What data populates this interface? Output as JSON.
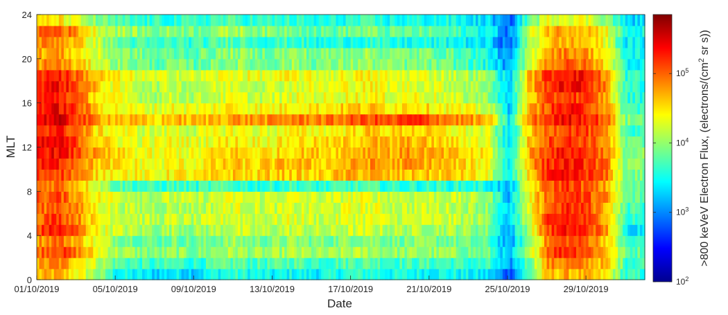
{
  "chart_data": {
    "type": "heatmap",
    "xlabel": "Date",
    "ylabel": "MLT",
    "x_ticks": [
      "01/10/2019",
      "05/10/2019",
      "09/10/2019",
      "13/10/2019",
      "17/10/2019",
      "21/10/2019",
      "25/10/2019",
      "29/10/2019"
    ],
    "x_tick_days": [
      0,
      4,
      8,
      12,
      16,
      20,
      24,
      28
    ],
    "xlim_days": [
      0,
      31
    ],
    "y_ticks": [
      "0",
      "4",
      "8",
      "12",
      "16",
      "20",
      "24"
    ],
    "y_tick_values": [
      0,
      4,
      8,
      12,
      16,
      20,
      24
    ],
    "ylim": [
      0,
      24
    ],
    "colorbar": {
      "label_main": ">800 keVeV Electron Flux, (electrons/(cm",
      "label_sup": "2",
      "label_tail": " sr s))",
      "scale": "log",
      "range_log10": [
        2,
        5.85
      ],
      "ticks": [
        {
          "base": "10",
          "exp": "2",
          "log10": 2
        },
        {
          "base": "10",
          "exp": "3",
          "log10": 3
        },
        {
          "base": "10",
          "exp": "4",
          "log10": 4
        },
        {
          "base": "10",
          "exp": "5",
          "log10": 5
        }
      ]
    },
    "mlt_bins": 24,
    "day_bins": 31,
    "log10_flux_grid_note": "rows = MLT bin 0..23 (bottom to top), columns = day 0..30",
    "log10_flux": [
      [
        4.6,
        4.7,
        4.4,
        4.0,
        3.5,
        3.4,
        3.3,
        3.4,
        3.3,
        3.5,
        3.6,
        3.5,
        3.4,
        3.5,
        3.4,
        3.5,
        3.6,
        3.6,
        3.5,
        3.5,
        3.5,
        3.5,
        3.4,
        3.3,
        2.8,
        3.7,
        4.6,
        4.7,
        4.6,
        4.4,
        3.6
      ],
      [
        4.7,
        4.9,
        4.6,
        4.2,
        3.8,
        3.7,
        3.6,
        3.7,
        3.6,
        3.7,
        3.8,
        3.7,
        3.7,
        3.8,
        3.7,
        3.7,
        3.8,
        3.8,
        3.7,
        3.7,
        3.7,
        3.7,
        3.6,
        3.6,
        3.0,
        3.8,
        4.8,
        4.9,
        4.8,
        4.6,
        3.7
      ],
      [
        5.0,
        5.2,
        4.9,
        4.4,
        4.1,
        4.0,
        3.9,
        4.0,
        3.9,
        4.0,
        4.1,
        4.0,
        4.0,
        4.1,
        4.0,
        4.0,
        4.1,
        4.1,
        4.0,
        4.0,
        4.0,
        4.0,
        3.9,
        3.8,
        3.1,
        4.0,
        5.1,
        5.3,
        5.1,
        4.7,
        3.8
      ],
      [
        4.8,
        5.0,
        4.7,
        4.3,
        4.0,
        3.9,
        3.8,
        3.9,
        3.8,
        3.9,
        4.0,
        3.9,
        3.9,
        4.0,
        3.9,
        3.9,
        4.0,
        4.0,
        3.9,
        3.9,
        3.9,
        3.9,
        3.8,
        3.7,
        3.0,
        3.9,
        4.9,
        5.1,
        5.0,
        4.6,
        3.6
      ],
      [
        5.1,
        5.3,
        5.0,
        4.4,
        4.2,
        4.1,
        4.0,
        4.1,
        4.0,
        4.1,
        4.2,
        4.1,
        4.1,
        4.2,
        4.1,
        4.1,
        4.2,
        4.2,
        4.1,
        4.1,
        4.1,
        4.1,
        4.0,
        3.9,
        3.1,
        4.1,
        5.1,
        5.3,
        5.2,
        4.8,
        3.4
      ],
      [
        5.0,
        5.2,
        4.9,
        4.4,
        4.3,
        4.2,
        4.1,
        4.2,
        4.1,
        4.2,
        4.3,
        4.2,
        4.2,
        4.3,
        4.2,
        4.2,
        4.3,
        4.3,
        4.2,
        4.2,
        4.2,
        4.2,
        4.1,
        4.0,
        3.2,
        4.2,
        5.1,
        5.3,
        5.1,
        4.8,
        3.6
      ],
      [
        4.9,
        5.1,
        4.8,
        4.4,
        4.2,
        4.1,
        4.1,
        4.1,
        4.1,
        4.2,
        4.3,
        4.2,
        4.2,
        4.2,
        4.2,
        4.2,
        4.3,
        4.3,
        4.2,
        4.2,
        4.2,
        4.2,
        4.1,
        4.0,
        3.2,
        4.2,
        5.0,
        5.2,
        5.1,
        4.7,
        3.7
      ],
      [
        5.0,
        5.1,
        4.8,
        4.4,
        4.3,
        4.2,
        4.1,
        4.2,
        4.1,
        4.2,
        4.3,
        4.2,
        4.2,
        4.3,
        4.2,
        4.2,
        4.3,
        4.3,
        4.2,
        4.2,
        4.2,
        4.2,
        4.1,
        4.0,
        3.2,
        4.3,
        5.0,
        5.2,
        5.1,
        4.8,
        3.8
      ],
      [
        4.9,
        5.0,
        4.7,
        4.3,
        3.8,
        3.7,
        3.6,
        3.7,
        3.6,
        3.7,
        3.7,
        3.6,
        3.6,
        3.7,
        3.6,
        3.6,
        3.7,
        3.7,
        3.6,
        3.6,
        3.6,
        3.6,
        3.6,
        3.5,
        3.1,
        4.3,
        5.0,
        5.2,
        5.0,
        4.7,
        3.8
      ],
      [
        5.1,
        5.2,
        4.9,
        4.5,
        4.5,
        4.4,
        4.3,
        4.5,
        4.4,
        4.5,
        4.6,
        4.5,
        4.6,
        4.6,
        4.5,
        4.6,
        4.7,
        4.7,
        4.6,
        4.6,
        4.6,
        4.6,
        4.5,
        4.3,
        3.3,
        4.5,
        5.2,
        5.3,
        5.2,
        4.9,
        3.9
      ],
      [
        5.2,
        5.3,
        5.0,
        4.6,
        4.5,
        4.4,
        4.3,
        4.4,
        4.4,
        4.5,
        4.6,
        4.5,
        4.6,
        4.7,
        4.6,
        4.6,
        4.7,
        4.8,
        4.7,
        4.8,
        4.7,
        4.6,
        4.5,
        4.4,
        3.4,
        4.7,
        5.2,
        5.3,
        5.2,
        4.9,
        3.9
      ],
      [
        5.3,
        5.4,
        5.1,
        4.7,
        4.5,
        4.4,
        4.3,
        4.4,
        4.3,
        4.5,
        4.6,
        4.5,
        4.5,
        4.6,
        4.6,
        4.6,
        4.7,
        4.8,
        4.7,
        4.8,
        4.7,
        4.6,
        4.5,
        4.4,
        3.4,
        4.7,
        5.2,
        5.3,
        5.2,
        4.9,
        3.9
      ],
      [
        5.3,
        5.4,
        5.1,
        4.6,
        4.4,
        4.3,
        4.3,
        4.4,
        4.3,
        4.4,
        4.5,
        4.4,
        4.4,
        4.5,
        4.5,
        4.5,
        4.6,
        4.7,
        4.6,
        4.7,
        4.6,
        4.5,
        4.4,
        4.3,
        3.3,
        4.6,
        5.1,
        5.2,
        5.1,
        4.8,
        3.8
      ],
      [
        5.2,
        5.3,
        5.0,
        4.5,
        4.4,
        4.3,
        4.2,
        4.3,
        4.2,
        4.3,
        4.4,
        4.3,
        4.3,
        4.4,
        4.4,
        4.4,
        4.5,
        4.6,
        4.5,
        4.6,
        4.5,
        4.4,
        4.3,
        4.2,
        3.3,
        4.5,
        5.0,
        5.2,
        5.1,
        4.7,
        3.7
      ],
      [
        5.4,
        5.5,
        5.2,
        4.8,
        4.7,
        4.6,
        4.5,
        4.7,
        4.6,
        4.7,
        4.8,
        4.8,
        4.8,
        4.9,
        4.9,
        4.9,
        5.0,
        5.1,
        5.0,
        5.2,
        5.1,
        4.9,
        4.8,
        4.6,
        3.4,
        4.8,
        5.2,
        5.4,
        5.3,
        5.0,
        3.9
      ],
      [
        5.3,
        5.4,
        5.1,
        4.6,
        4.4,
        4.3,
        4.3,
        4.4,
        4.3,
        4.4,
        4.5,
        4.4,
        4.4,
        4.5,
        4.5,
        4.5,
        4.6,
        4.6,
        4.5,
        4.6,
        4.5,
        4.4,
        4.3,
        4.2,
        3.3,
        4.6,
        5.1,
        5.3,
        5.2,
        4.8,
        3.7
      ],
      [
        5.2,
        5.3,
        5.0,
        4.5,
        4.3,
        4.2,
        4.1,
        4.2,
        4.1,
        4.2,
        4.3,
        4.2,
        4.2,
        4.3,
        4.3,
        4.3,
        4.4,
        4.4,
        4.3,
        4.4,
        4.3,
        4.2,
        4.1,
        4.0,
        3.2,
        4.5,
        5.0,
        5.2,
        5.1,
        4.7,
        3.6
      ],
      [
        5.3,
        5.4,
        5.1,
        4.6,
        4.3,
        4.2,
        4.1,
        4.2,
        4.1,
        4.2,
        4.3,
        4.2,
        4.2,
        4.3,
        4.3,
        4.3,
        4.4,
        4.4,
        4.3,
        4.3,
        4.3,
        4.2,
        4.1,
        4.0,
        3.2,
        4.6,
        5.2,
        5.4,
        5.3,
        4.8,
        3.6
      ],
      [
        5.2,
        5.3,
        5.0,
        4.6,
        4.4,
        4.3,
        4.2,
        4.3,
        4.2,
        4.3,
        4.4,
        4.3,
        4.3,
        4.4,
        4.3,
        4.3,
        4.4,
        4.4,
        4.3,
        4.3,
        4.3,
        4.2,
        4.1,
        4.0,
        3.2,
        4.6,
        5.2,
        5.4,
        5.3,
        4.8,
        3.6
      ],
      [
        4.8,
        4.9,
        4.6,
        4.3,
        4.0,
        3.9,
        3.8,
        3.9,
        3.8,
        3.9,
        4.0,
        3.9,
        3.9,
        4.0,
        3.9,
        3.9,
        4.0,
        4.0,
        3.9,
        3.9,
        3.9,
        3.8,
        3.7,
        3.5,
        3.0,
        4.2,
        4.9,
        5.0,
        4.9,
        4.5,
        3.5
      ],
      [
        4.7,
        4.8,
        4.5,
        4.2,
        4.0,
        3.9,
        3.8,
        3.8,
        3.8,
        3.9,
        4.0,
        3.9,
        3.9,
        4.0,
        3.9,
        3.9,
        4.0,
        4.0,
        3.9,
        3.9,
        3.9,
        3.8,
        3.7,
        3.5,
        2.9,
        4.1,
        4.8,
        4.9,
        4.8,
        4.4,
        3.5
      ],
      [
        4.8,
        4.9,
        4.6,
        4.2,
        3.8,
        3.7,
        3.6,
        3.7,
        3.6,
        3.7,
        3.8,
        3.7,
        3.6,
        3.7,
        3.5,
        3.5,
        3.6,
        3.6,
        3.5,
        3.5,
        3.5,
        3.5,
        3.4,
        3.3,
        2.8,
        4.0,
        4.6,
        4.7,
        4.6,
        4.3,
        3.4
      ],
      [
        5.0,
        5.1,
        4.8,
        4.3,
        4.1,
        4.0,
        3.9,
        4.0,
        3.9,
        4.0,
        4.1,
        4.0,
        3.9,
        4.0,
        3.8,
        3.8,
        3.9,
        3.9,
        3.8,
        3.8,
        3.8,
        3.7,
        3.6,
        3.5,
        2.9,
        4.1,
        4.7,
        4.8,
        4.7,
        4.4,
        3.5
      ],
      [
        4.4,
        4.5,
        4.2,
        3.9,
        3.7,
        3.6,
        3.6,
        3.6,
        3.6,
        3.7,
        3.7,
        3.6,
        3.6,
        3.6,
        3.5,
        3.5,
        3.6,
        3.6,
        3.5,
        3.5,
        3.5,
        3.5,
        3.4,
        3.3,
        2.8,
        3.8,
        4.3,
        4.4,
        4.3,
        4.0,
        3.3
      ]
    ]
  }
}
